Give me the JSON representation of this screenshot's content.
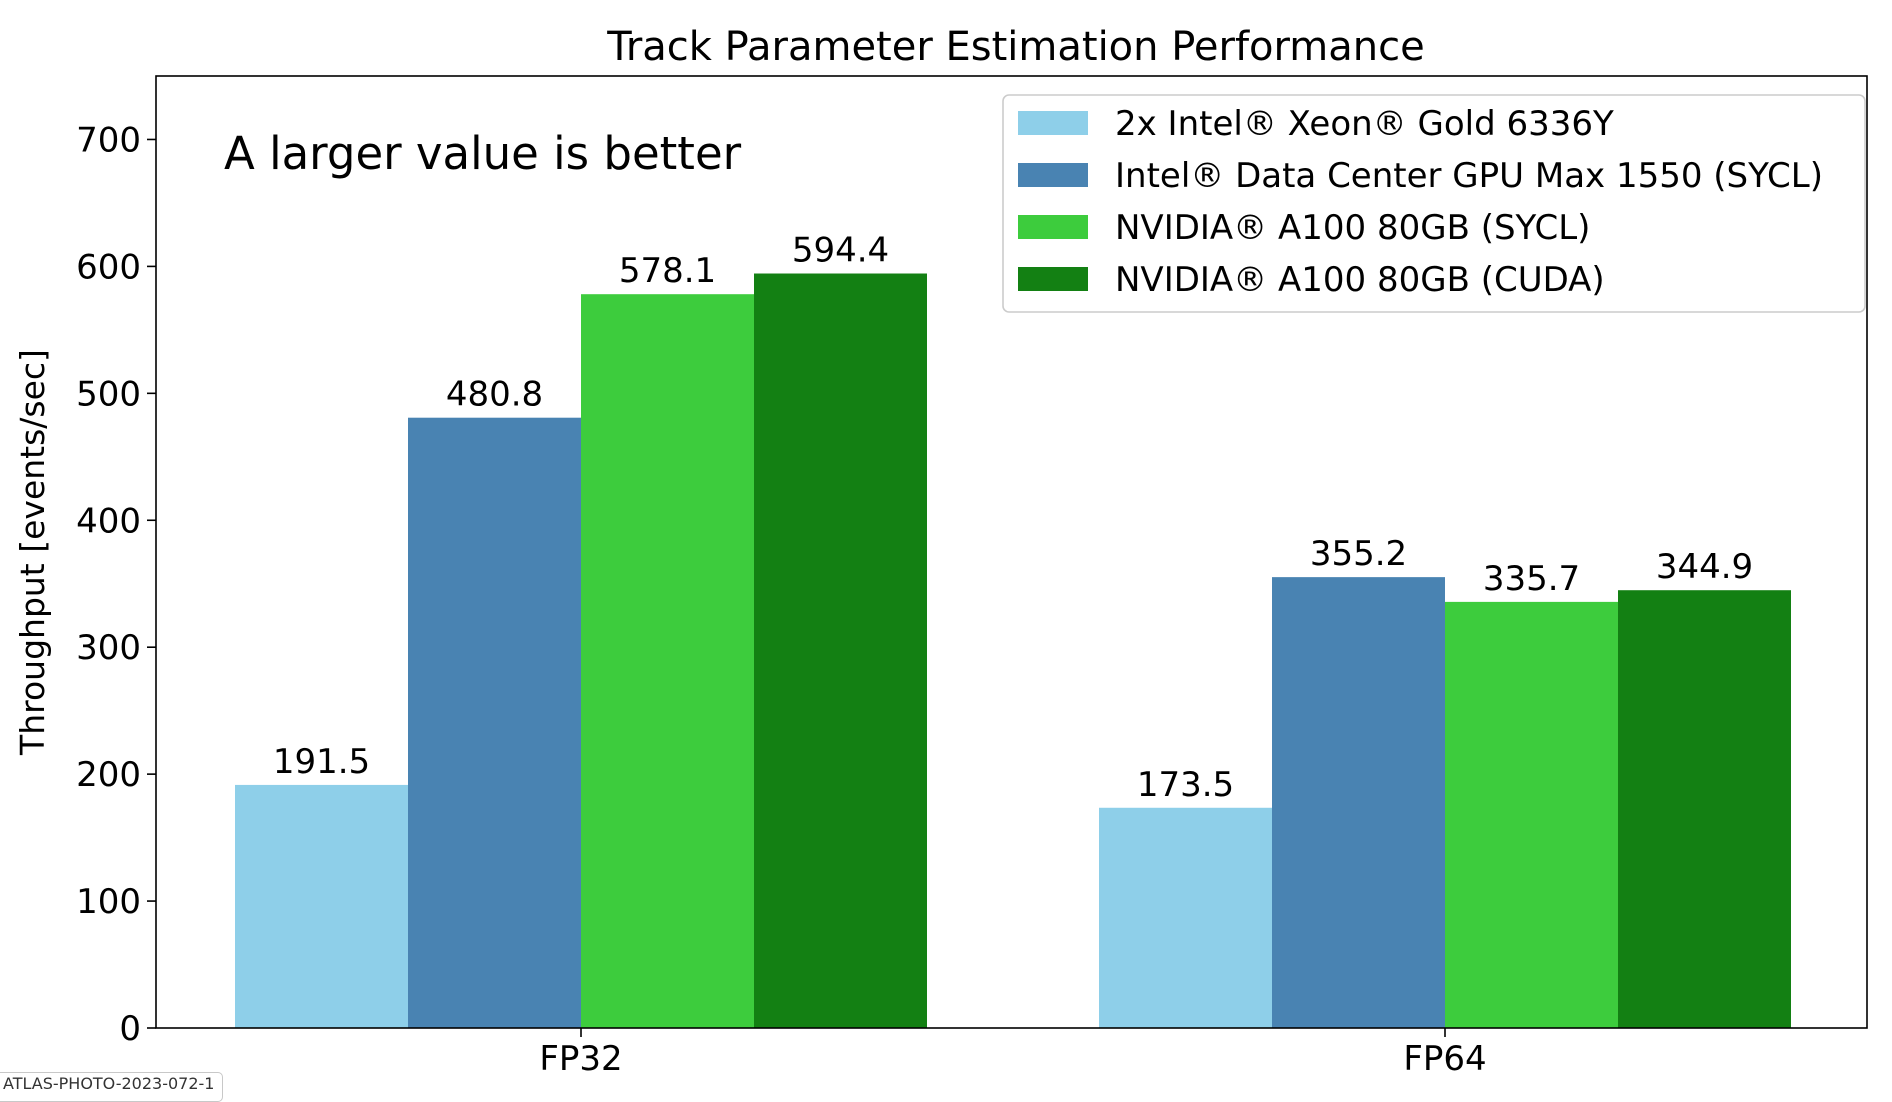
{
  "chart_data": {
    "type": "bar",
    "title": "Track Parameter Estimation Performance",
    "annotation": "A larger value is better",
    "xlabel": "",
    "ylabel": "Throughput [events/sec]",
    "categories": [
      "FP32",
      "FP64"
    ],
    "ylim": [
      0,
      750
    ],
    "yticks": [
      0,
      100,
      200,
      300,
      400,
      500,
      600,
      700
    ],
    "grid": false,
    "legend_position": "top-right",
    "series": [
      {
        "name": "2x Intel® Xeon® Gold 6336Y",
        "color": "#8ecfe9",
        "values": [
          191.5,
          173.5
        ],
        "labels": [
          "191.5",
          "173.5"
        ]
      },
      {
        "name": "Intel® Data Center GPU Max 1550 (SYCL)",
        "color": "#4983b2",
        "values": [
          480.8,
          355.2
        ],
        "labels": [
          "480.8",
          "355.2"
        ]
      },
      {
        "name": "NVIDIA® A100 80GB (SYCL)",
        "color": "#3dcc3d",
        "values": [
          578.1,
          335.7
        ],
        "labels": [
          "578.1",
          "335.7"
        ]
      },
      {
        "name": "NVIDIA® A100 80GB (CUDA)",
        "color": "#138013",
        "values": [
          594.4,
          344.9
        ],
        "labels": [
          "594.4",
          "344.9"
        ]
      }
    ]
  },
  "credit": "ATLAS-PHOTO-2023-072-1"
}
